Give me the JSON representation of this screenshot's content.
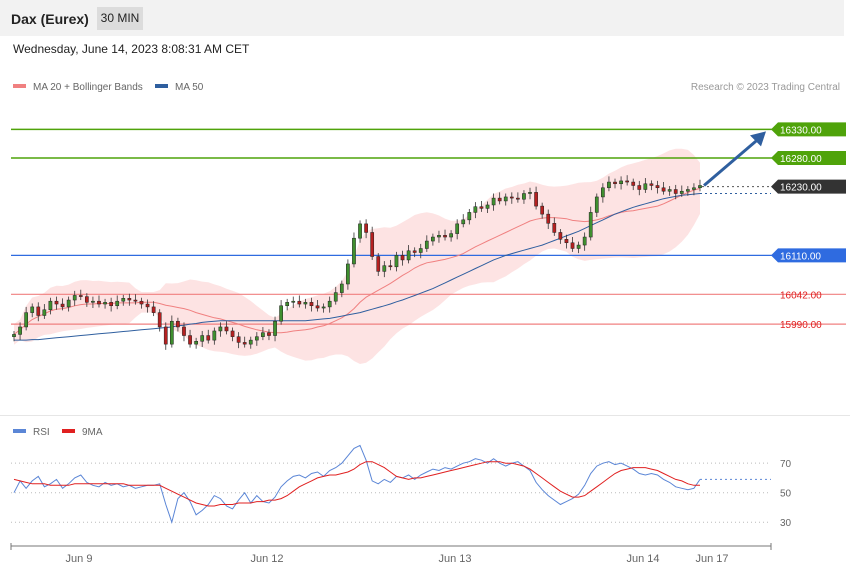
{
  "header": {
    "title": "Dax (Eurex)",
    "timeframe": "30 MIN",
    "datetime": "Wednesday, June 14, 2023 8:08:31 AM CET"
  },
  "legend_main": [
    {
      "label": "MA 20 + Bollinger Bands",
      "color": "#f08080"
    },
    {
      "label": "MA 50",
      "color": "#2f5f9f"
    }
  ],
  "legend_rsi": [
    {
      "label": "RSI",
      "color": "#5b86d6"
    },
    {
      "label": "9MA",
      "color": "#e02020"
    }
  ],
  "credit": "Research © 2023 Trading Central",
  "colors": {
    "green": "#4fa30a",
    "blue": "#2f6be0",
    "red": "#f08080",
    "dark": "#333333",
    "arrow": "#2f5f9f",
    "bull": "#3f8f2f",
    "bear": "#b52020"
  },
  "chart_data": [
    {
      "type": "candlestick",
      "title": "Dax (Eurex)",
      "ylim": [
        15840,
        16390
      ],
      "x_labels": [
        "Jun 9",
        "Jun 12",
        "Jun 13",
        "Jun 14",
        "Jun 17"
      ],
      "levels": [
        {
          "value": 16330.0,
          "label": "16330.00",
          "style": "green"
        },
        {
          "value": 16280.0,
          "label": "16280.00",
          "style": "green"
        },
        {
          "value": 16230.0,
          "label": "16230.00",
          "style": "current"
        },
        {
          "value": 16110.0,
          "label": "16110.00",
          "style": "blue"
        },
        {
          "value": 16042.0,
          "label": "16042.00",
          "style": "red"
        },
        {
          "value": 15990.0,
          "label": "15990.00",
          "style": "red"
        }
      ],
      "forecast_target": 16330,
      "close": [
        15972,
        15985,
        16010,
        16020,
        16005,
        16015,
        16030,
        16025,
        16020,
        16032,
        16040,
        16038,
        16028,
        16030,
        16025,
        16028,
        16022,
        16030,
        16035,
        16032,
        16030,
        16025,
        16020,
        16010,
        15985,
        15955,
        15995,
        15985,
        15970,
        15955,
        15960,
        15970,
        15962,
        15978,
        15985,
        15978,
        15968,
        15958,
        15955,
        15962,
        15968,
        15975,
        15970,
        15995,
        16022,
        16028,
        16030,
        16025,
        16028,
        16022,
        16018,
        16020,
        16030,
        16045,
        16060,
        16095,
        16140,
        16165,
        16150,
        16108,
        16082,
        16092,
        16090,
        16110,
        16102,
        16118,
        16115,
        16122,
        16135,
        16142,
        16145,
        16142,
        16148,
        16165,
        16172,
        16185,
        16195,
        16192,
        16198,
        16210,
        16205,
        16212,
        16210,
        16208,
        16218,
        16220,
        16196,
        16182,
        16166,
        16150,
        16138,
        16132,
        16122,
        16128,
        16142,
        16185,
        16212,
        16228,
        16238,
        16235,
        16240,
        16238,
        16232,
        16225,
        16235,
        16232,
        16228,
        16222,
        16225,
        16218,
        16222,
        16225,
        16228,
        16232
      ],
      "ma20": [
        15972,
        15980,
        15990,
        15998,
        16003,
        16008,
        16013,
        16016,
        16017,
        16019,
        16022,
        16024,
        16025,
        16025,
        16026,
        16026,
        16026,
        16027,
        16027,
        16027,
        16027,
        16028,
        16028,
        16028,
        16026,
        16023,
        16021,
        16019,
        16017,
        16014,
        16010,
        16007,
        16004,
        16001,
        15999,
        15996,
        15993,
        15990,
        15986,
        15983,
        15980,
        15978,
        15976,
        15975,
        15975,
        15976,
        15978,
        15979,
        15980,
        15982,
        15985,
        15987,
        15991,
        15996,
        16001,
        16008,
        16017,
        16028,
        16037,
        16043,
        16049,
        16055,
        16061,
        16068,
        16075,
        16081,
        16088,
        16093,
        16097,
        16099,
        16101,
        16103,
        16106,
        16109,
        16113,
        16119,
        16125,
        16130,
        16135,
        16140,
        16145,
        16150,
        16155,
        16160,
        16165,
        16170,
        16173,
        16175,
        16176,
        16176,
        16175,
        16174,
        16171,
        16170,
        16169,
        16170,
        16172,
        16175,
        16179,
        16182,
        16185,
        16187,
        16188,
        16190,
        16192,
        16194,
        16196,
        16200,
        16205,
        16210,
        16215,
        16220,
        16224,
        16227
      ],
      "ma50": [
        15962,
        15962,
        15962,
        15963,
        15963,
        15964,
        15965,
        15966,
        15967,
        15968,
        15969,
        15970,
        15971,
        15972,
        15973,
        15974,
        15975,
        15976,
        15977,
        15978,
        15979,
        15980,
        15981,
        15982,
        15983,
        15984,
        15985,
        15987,
        15988,
        15990,
        15991,
        15993,
        15994,
        15995,
        15996,
        15996,
        15996,
        15996,
        15996,
        15996,
        15996,
        15996,
        15996,
        15996,
        15996,
        15996,
        15996,
        15996,
        15996,
        15997,
        15998,
        15999,
        16000,
        16002,
        16004,
        16006,
        16008,
        16010,
        16013,
        16016,
        16019,
        16022,
        16025,
        16029,
        16032,
        16036,
        16040,
        16044,
        16048,
        16052,
        16057,
        16062,
        16067,
        16072,
        16077,
        16082,
        16087,
        16092,
        16097,
        16102,
        16106,
        16110,
        16113,
        16116,
        16119,
        16122,
        16125,
        16128,
        16132,
        16136,
        16140,
        16144,
        16148,
        16152,
        16157,
        16162,
        16167,
        16172,
        16177,
        16182,
        16186,
        16190,
        16194,
        16197,
        16200,
        16203,
        16206,
        16209,
        16211,
        16213,
        16215,
        16216,
        16217,
        16218
      ]
    },
    {
      "type": "line",
      "title": "RSI",
      "ylim": [
        20,
        85
      ],
      "y_ticks": [
        70,
        50,
        30
      ],
      "series": [
        {
          "name": "RSI",
          "values": [
            50,
            58,
            53,
            58,
            61,
            54,
            56,
            59,
            53,
            56,
            60,
            62,
            57,
            55,
            54,
            57,
            55,
            56,
            54,
            55,
            53,
            54,
            55,
            55,
            56,
            42,
            30,
            46,
            50,
            44,
            35,
            38,
            42,
            48,
            46,
            41,
            39,
            45,
            50,
            43,
            48,
            44,
            43,
            47,
            54,
            58,
            61,
            62,
            60,
            63,
            64,
            61,
            65,
            67,
            70,
            75,
            80,
            82,
            72,
            58,
            56,
            59,
            57,
            61,
            60,
            62,
            59,
            62,
            64,
            66,
            65,
            67,
            66,
            68,
            70,
            71,
            73,
            72,
            70,
            73,
            70,
            68,
            70,
            71,
            68,
            65,
            57,
            52,
            48,
            45,
            42,
            44,
            46,
            49,
            55,
            63,
            68,
            70,
            71,
            69,
            70,
            68,
            66,
            63,
            62,
            63,
            62,
            59,
            57,
            54,
            53,
            52,
            53,
            59
          ]
        },
        {
          "name": "9MA",
          "values": [
            59,
            58,
            57,
            56,
            56,
            56,
            55,
            55,
            55,
            55,
            56,
            56,
            56,
            56,
            56,
            56,
            56,
            56,
            56,
            55,
            55,
            55,
            55,
            55,
            55,
            53,
            51,
            49,
            47,
            45,
            43,
            42,
            41,
            41,
            42,
            42,
            42,
            43,
            43,
            43,
            44,
            44,
            45,
            45,
            46,
            48,
            51,
            54,
            56,
            58,
            60,
            61,
            62,
            62,
            63,
            64,
            66,
            69,
            71,
            71,
            69,
            67,
            64,
            61,
            60,
            59,
            60,
            60,
            61,
            62,
            63,
            64,
            65,
            66,
            67,
            68,
            69,
            70,
            71,
            71,
            71,
            70,
            70,
            69,
            68,
            66,
            63,
            60,
            57,
            54,
            51,
            49,
            47,
            47,
            48,
            51,
            54,
            57,
            60,
            63,
            65,
            66,
            67,
            67,
            67,
            66,
            65,
            63,
            61,
            59,
            58,
            56,
            55,
            55
          ]
        }
      ]
    }
  ]
}
